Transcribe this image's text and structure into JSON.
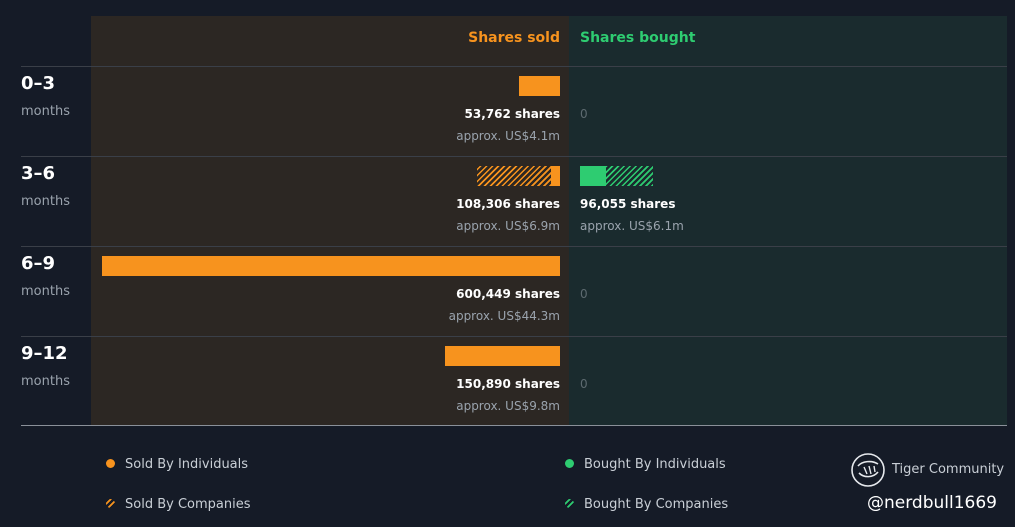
{
  "chart_data": {
    "type": "bar",
    "headers": {
      "sold": "Shares sold",
      "bought": "Shares bought"
    },
    "max_shares": 600449,
    "periods": [
      {
        "label": "0–3",
        "unit": "months",
        "sold": {
          "individuals": 53762,
          "companies": 0,
          "shares_text": "53,762 shares",
          "approx_text": "approx. US$4.1m"
        },
        "bought": {
          "individuals": 0,
          "companies": 0,
          "zero_text": "0"
        }
      },
      {
        "label": "3–6",
        "unit": "months",
        "sold": {
          "individuals": 12000,
          "companies": 96306,
          "shares_text": "108,306 shares",
          "approx_text": "approx. US$6.9m"
        },
        "bought": {
          "individuals": 34000,
          "companies": 62055,
          "shares_text": "96,055 shares",
          "approx_text": "approx. US$6.1m"
        }
      },
      {
        "label": "6–9",
        "unit": "months",
        "sold": {
          "individuals": 600449,
          "companies": 0,
          "shares_text": "600,449 shares",
          "approx_text": "approx. US$44.3m"
        },
        "bought": {
          "individuals": 0,
          "companies": 0,
          "zero_text": "0"
        }
      },
      {
        "label": "9–12",
        "unit": "months",
        "sold": {
          "individuals": 150890,
          "companies": 0,
          "shares_text": "150,890 shares",
          "approx_text": "approx. US$9.8m"
        },
        "bought": {
          "individuals": 0,
          "companies": 0,
          "zero_text": "0"
        }
      }
    ],
    "legend": [
      {
        "label": "Sold By Individuals",
        "color": "#f7931e",
        "style": "solid"
      },
      {
        "label": "Sold By Companies",
        "color": "#f7931e",
        "style": "hatched"
      },
      {
        "label": "Bought By Individuals",
        "color": "#2ecc71",
        "style": "solid"
      },
      {
        "label": "Bought By Companies",
        "color": "#2ecc71",
        "style": "hatched"
      }
    ],
    "colors": {
      "sold": "#f7931e",
      "bought": "#2ecc71",
      "background": "#151b27"
    }
  },
  "branding": {
    "name": "Tiger Community",
    "handle": "@nerdbull1669"
  }
}
